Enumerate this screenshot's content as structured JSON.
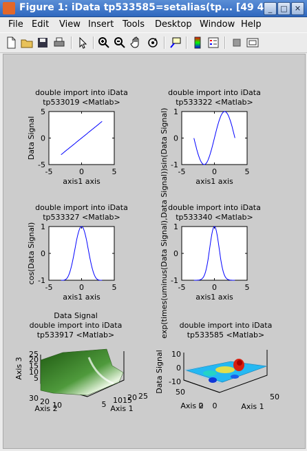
{
  "window": {
    "title": "Figure 1: iData tp533585=setalias(tp... [49  4",
    "buttons": [
      "_",
      "□",
      "✕"
    ]
  },
  "menu": [
    "File",
    "Edit",
    "View",
    "Insert",
    "Tools",
    "Desktop",
    "Window",
    "Help"
  ],
  "toolbar_icons": [
    "new-icon",
    "open-icon",
    "save-icon",
    "print-icon",
    "pointer-icon",
    "zoom-in-icon",
    "zoom-out-icon",
    "pan-icon",
    "rotate-icon",
    "datatip-icon",
    "colorbar-icon",
    "legend-icon",
    "hide-plottools-icon",
    "show-plottools-icon"
  ],
  "chart_data": [
    {
      "type": "line",
      "title": [
        "double import into iData",
        "tp533019 <Matlab>"
      ],
      "xlabel": "axis1 axis",
      "ylabel": "Data Signal",
      "xlim": [
        -5,
        5
      ],
      "ylim": [
        -5,
        5
      ],
      "xticks": [
        "-5",
        "0",
        "5"
      ],
      "yticks": [
        "5",
        "0",
        "-5"
      ],
      "fn": "linear",
      "x": [
        -3.14,
        3.14
      ],
      "y": [
        -3.14,
        3.14
      ],
      "color": "#0000ff"
    },
    {
      "type": "line",
      "title": [
        "double import into iData",
        "tp533322 <Matlab>"
      ],
      "xlabel": "axis1 axis",
      "ylabel": "sin(Data Signal)",
      "xlim": [
        -5,
        5
      ],
      "ylim": [
        -1,
        1
      ],
      "xticks": [
        "-5",
        "0",
        "5"
      ],
      "yticks": [
        "1",
        "0",
        "-1"
      ],
      "fn": "sin",
      "x": [
        -3.14,
        3.14
      ],
      "color": "#0000ff"
    },
    {
      "type": "line",
      "title": [
        "double import into iData",
        "tp533327 <Matlab>"
      ],
      "xlabel": "axis1 axis",
      "ylabel": "cos(Data Signal)",
      "xlim": [
        -5,
        5
      ],
      "ylim": [
        -1,
        1
      ],
      "xticks": [
        "-5",
        "0",
        "5"
      ],
      "yticks": [
        "1",
        "0",
        "-1"
      ],
      "fn": "cosbump",
      "x": [
        -3.14,
        3.14
      ],
      "color": "#0000ff"
    },
    {
      "type": "line",
      "title": [
        "double import into iData",
        "tp533340 <Matlab>"
      ],
      "xlabel": "axis1 axis",
      "ylabel": "exp(times(uminus(Data Signal),Data Signal))",
      "xlim": [
        -5,
        5
      ],
      "ylim": [
        -1,
        1
      ],
      "xticks": [
        "-5",
        "0",
        "5"
      ],
      "yticks": [
        "1",
        "0",
        "-1"
      ],
      "fn": "gauss",
      "x": [
        -3.14,
        3.14
      ],
      "color": "#0000ff"
    },
    {
      "type": "surface",
      "title": [
        "Data Signal",
        "double import into iData",
        "tp533917 <Matlab>"
      ],
      "zlabel": "Axis 3",
      "xlabel": "Axis 1",
      "ylabel": "Axis 2",
      "zticks": [
        "25",
        "20",
        "15",
        "10",
        "5"
      ],
      "yticks": [
        "30",
        "20",
        "10"
      ],
      "xticks": [
        "5",
        "1015",
        "20",
        "25"
      ],
      "color": "#3f8f2f"
    },
    {
      "type": "surface",
      "title": [
        "double import into iData",
        "tp533585 <Matlab>"
      ],
      "zlabel": "Data Signal",
      "xlabel": "Axis 1",
      "ylabel": "Axis 2",
      "zticks": [
        "10",
        "0",
        "-10"
      ],
      "yticks": [
        "50",
        "0"
      ],
      "xticks": [
        "0",
        "50"
      ],
      "color": "#00c8ff"
    }
  ]
}
